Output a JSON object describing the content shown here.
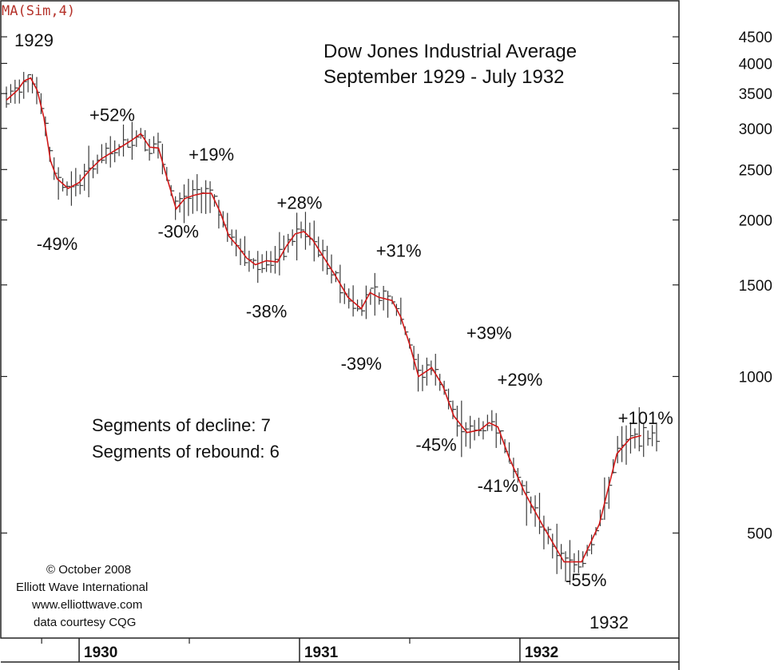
{
  "indicator_label": "MA(Sim,4)",
  "title_line1": "Dow Jones Industrial Average",
  "title_line2": "September 1929 - July 1932",
  "year_start_label": "1929",
  "year_end_label": "1932",
  "segments": {
    "decline": "Segments of decline: 7",
    "rebound": "Segments of rebound: 6"
  },
  "credits": {
    "line1": "© October 2008",
    "line2": "Elliott Wave International",
    "line3": "www.elliottwave.com",
    "line4": "data courtesy CQG"
  },
  "colors": {
    "ma_line": "#d01818",
    "bars": "#3a3a3a",
    "ma_label": "#b5322a"
  },
  "chart_data": {
    "type": "line",
    "title": "Dow Jones Industrial Average",
    "subtitle": "September 1929 - July 1932",
    "y_scale": "log",
    "ylim": [
      330,
      4900
    ],
    "y_ticks": [
      500,
      1000,
      1500,
      2000,
      2500,
      3000,
      3500,
      4000,
      4500
    ],
    "y_tick_labels": [
      "500",
      "1000",
      "1500",
      "2000",
      "2500",
      "3000",
      "3500",
      "4000",
      "4500"
    ],
    "x_range": [
      1929.67,
      1932.62
    ],
    "x_ticks": [
      1930,
      1931,
      1932
    ],
    "x_tick_labels": [
      "1930",
      "1931",
      "1932"
    ],
    "grid": false,
    "legend": "none",
    "series": [
      {
        "name": "MA(Sim,4)",
        "points": [
          [
            1929.67,
            3400
          ],
          [
            1929.72,
            3550
          ],
          [
            1929.75,
            3700
          ],
          [
            1929.78,
            3750
          ],
          [
            1929.81,
            3550
          ],
          [
            1929.84,
            3150
          ],
          [
            1929.87,
            2600
          ],
          [
            1929.9,
            2400
          ],
          [
            1929.95,
            2300
          ],
          [
            1930.0,
            2360
          ],
          [
            1930.05,
            2500
          ],
          [
            1930.1,
            2620
          ],
          [
            1930.15,
            2700
          ],
          [
            1930.2,
            2780
          ],
          [
            1930.24,
            2850
          ],
          [
            1930.28,
            2930
          ],
          [
            1930.32,
            2760
          ],
          [
            1930.36,
            2750
          ],
          [
            1930.4,
            2400
          ],
          [
            1930.44,
            2100
          ],
          [
            1930.48,
            2200
          ],
          [
            1930.52,
            2230
          ],
          [
            1930.56,
            2250
          ],
          [
            1930.6,
            2250
          ],
          [
            1930.64,
            2070
          ],
          [
            1930.68,
            1860
          ],
          [
            1930.72,
            1780
          ],
          [
            1930.76,
            1690
          ],
          [
            1930.8,
            1640
          ],
          [
            1930.85,
            1670
          ],
          [
            1930.9,
            1660
          ],
          [
            1930.94,
            1780
          ],
          [
            1930.98,
            1880
          ],
          [
            1931.02,
            1900
          ],
          [
            1931.06,
            1830
          ],
          [
            1931.1,
            1720
          ],
          [
            1931.16,
            1570
          ],
          [
            1931.22,
            1420
          ],
          [
            1931.28,
            1350
          ],
          [
            1931.32,
            1450
          ],
          [
            1931.36,
            1420
          ],
          [
            1931.42,
            1400
          ],
          [
            1931.46,
            1300
          ],
          [
            1931.5,
            1150
          ],
          [
            1931.54,
            1000
          ],
          [
            1931.6,
            1040
          ],
          [
            1931.65,
            960
          ],
          [
            1931.7,
            840
          ],
          [
            1931.76,
            780
          ],
          [
            1931.82,
            790
          ],
          [
            1931.86,
            815
          ],
          [
            1931.9,
            800
          ],
          [
            1931.95,
            700
          ],
          [
            1932.02,
            600
          ],
          [
            1932.1,
            520
          ],
          [
            1932.2,
            440
          ],
          [
            1932.28,
            440
          ],
          [
            1932.36,
            520
          ],
          [
            1932.44,
            710
          ],
          [
            1932.5,
            760
          ],
          [
            1932.55,
            770
          ]
        ]
      }
    ],
    "annotations": [
      {
        "text": "+52%",
        "x": 1930.15,
        "y": 3100
      },
      {
        "text": "+19%",
        "x": 1930.6,
        "y": 2600
      },
      {
        "text": "+28%",
        "x": 1931.0,
        "y": 2100
      },
      {
        "text": "+31%",
        "x": 1931.45,
        "y": 1700
      },
      {
        "text": "+39%",
        "x": 1931.86,
        "y": 1180
      },
      {
        "text": "+29%",
        "x": 1932.0,
        "y": 960
      },
      {
        "text": "+101%",
        "x": 1932.57,
        "y": 810
      },
      {
        "text": "-49%",
        "x": 1929.9,
        "y": 1750
      },
      {
        "text": "-30%",
        "x": 1930.45,
        "y": 1850
      },
      {
        "text": "-38%",
        "x": 1930.85,
        "y": 1300
      },
      {
        "text": "-39%",
        "x": 1931.28,
        "y": 1030
      },
      {
        "text": "-45%",
        "x": 1931.62,
        "y": 720
      },
      {
        "text": "-41%",
        "x": 1931.9,
        "y": 600
      },
      {
        "text": "-55%",
        "x": 1932.3,
        "y": 395
      }
    ]
  }
}
